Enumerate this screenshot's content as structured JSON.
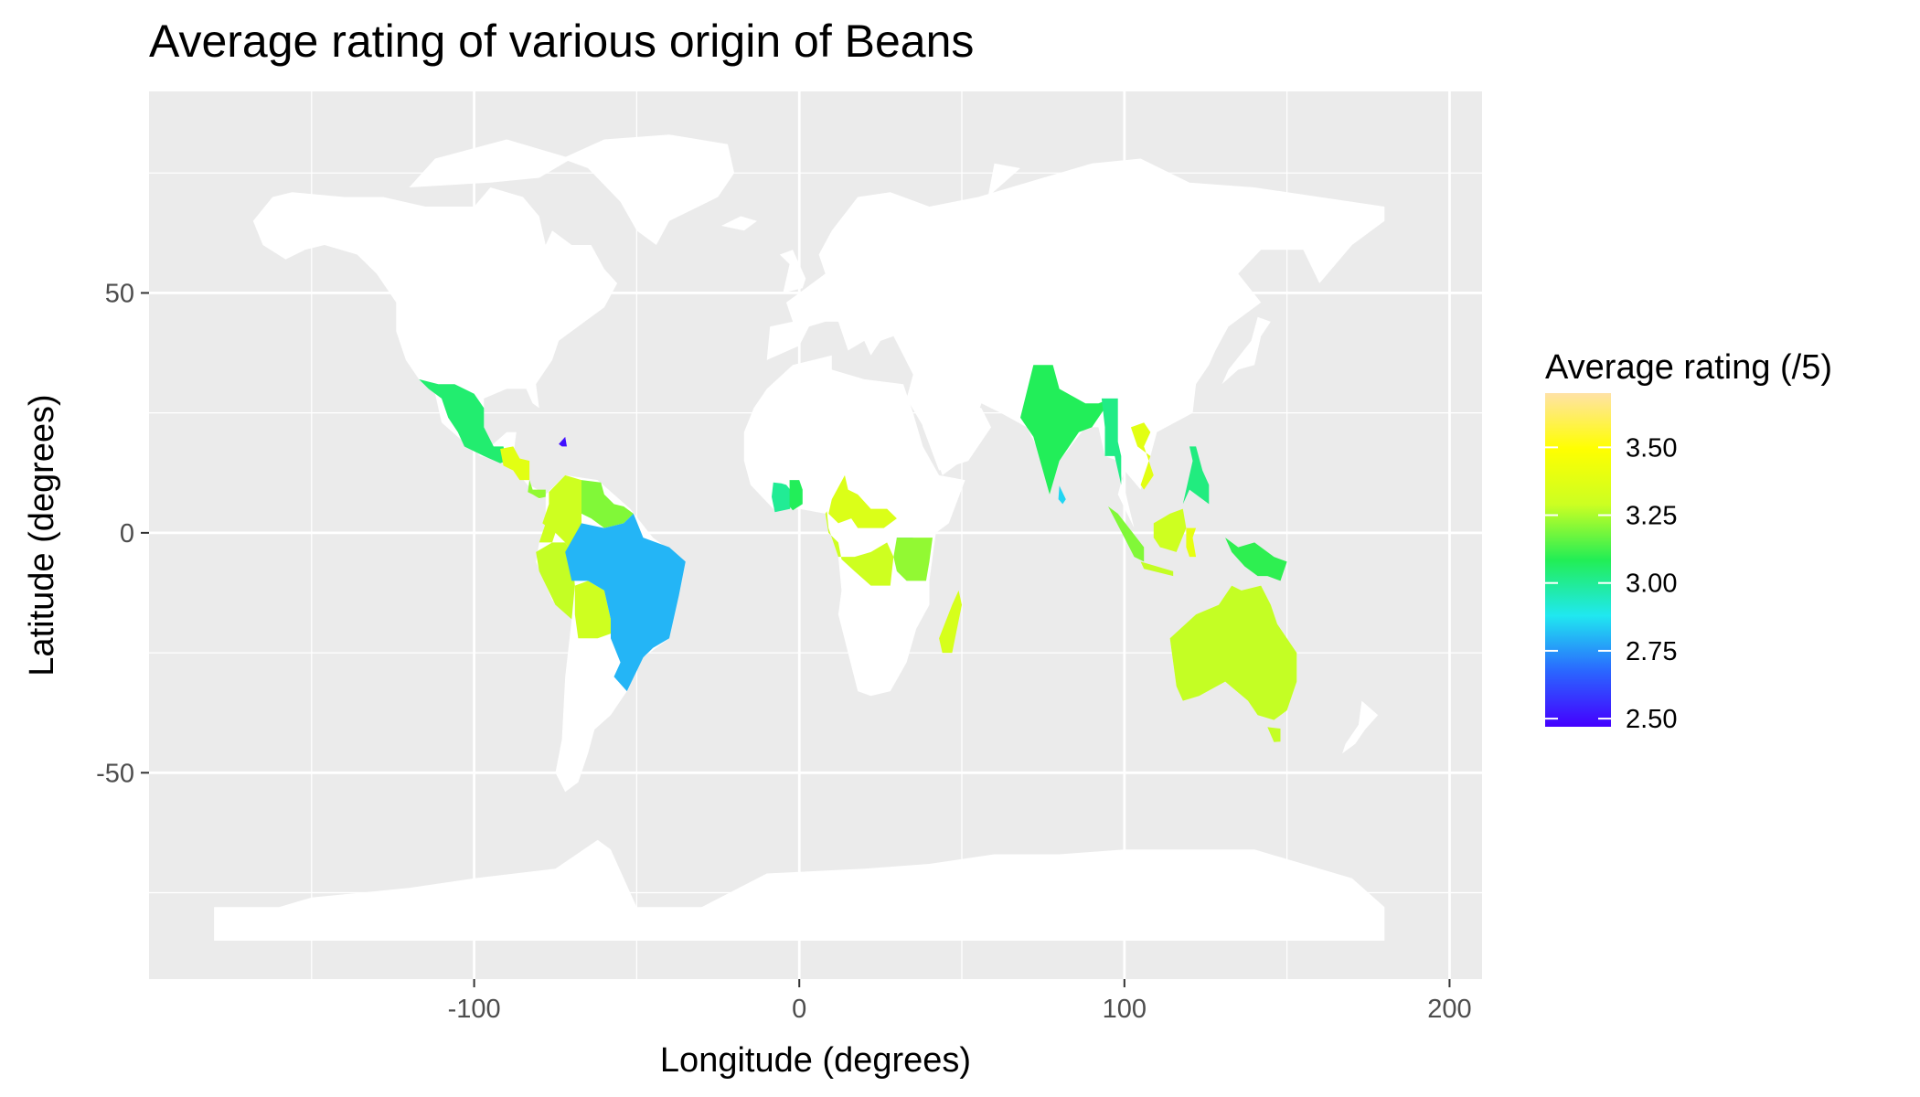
{
  "colors": {
    "panel_bg": "#EBEBEB",
    "grid": "#FFFFFF",
    "land": "#FFFFFF"
  },
  "chart_data": {
    "type": "choropleth",
    "title": "Average rating of various origin of Beans",
    "xlabel": "Longitude (degrees)",
    "ylabel": "Latitude (degrees)",
    "xlim": [
      -200,
      210
    ],
    "ylim": [
      -93,
      92
    ],
    "x_ticks": [
      -100,
      0,
      100,
      200
    ],
    "x_tick_labels": [
      "-100",
      "0",
      "100",
      "200"
    ],
    "y_ticks": [
      -50,
      0,
      50
    ],
    "y_tick_labels": [
      "-50",
      "0",
      "50"
    ],
    "grid": true,
    "legend": {
      "title": "Average rating (/5)",
      "placement": "right",
      "range": [
        2.47,
        3.7
      ],
      "breaks": [
        2.5,
        2.75,
        3.0,
        3.25,
        3.5
      ],
      "break_labels": [
        "2.50",
        "2.75",
        "3.00",
        "3.25",
        "3.50"
      ],
      "colors": [
        "#4400ff",
        "#2a66ff",
        "#20e8f0",
        "#22ee55",
        "#ccff22",
        "#ffff00",
        "#ffe2a6"
      ]
    },
    "regions": [
      {
        "value": 3.05
      },
      {
        "value": 2.5
      },
      {
        "value": 3.38
      },
      {
        "value": 3.22
      },
      {
        "value": 3.3
      },
      {
        "value": 3.2
      },
      {
        "value": 3.3
      },
      {
        "value": 3.28
      },
      {
        "value": 3.3
      },
      {
        "value": 2.8
      },
      {
        "value": 3.0
      },
      {
        "value": 3.08
      },
      {
        "value": 3.3
      },
      {
        "value": 3.35
      },
      {
        "value": 2.8
      },
      {
        "value": 3.22
      },
      {
        "value": 3.33
      },
      {
        "value": 3.08
      },
      {
        "value": 2.85
      },
      {
        "value": 3.02
      },
      {
        "value": 3.38
      },
      {
        "value": 3.03
      },
      {
        "value": 3.2
      },
      {
        "value": 3.28
      },
      {
        "value": 3.3
      },
      {
        "value": 3.4
      },
      {
        "value": 3.1
      },
      {
        "value": 3.28
      }
    ]
  }
}
